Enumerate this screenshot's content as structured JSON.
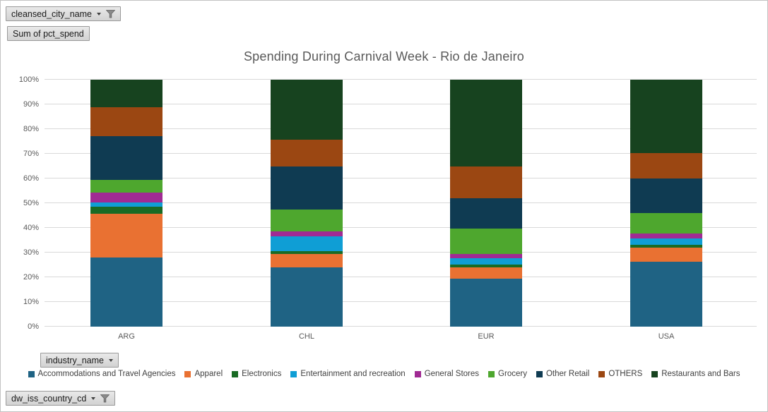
{
  "pivot_buttons": {
    "city_field": {
      "label": "cleansed_city_name",
      "has_dropdown": true,
      "has_filter": true
    },
    "value_field": {
      "label": "Sum of pct_spend",
      "has_dropdown": false,
      "has_filter": false
    },
    "industry_field": {
      "label": "industry_name",
      "has_dropdown": true,
      "has_filter": false
    },
    "country_field": {
      "label": "dw_iss_country_cd",
      "has_dropdown": true,
      "has_filter": true
    }
  },
  "chart_data": {
    "type": "bar",
    "subtype": "100%-stacked-column",
    "title": "Spending During Carnival Week - Rio de Janeiro",
    "categories": [
      "ARG",
      "CHL",
      "EUR",
      "USA"
    ],
    "series": [
      {
        "name": "Accommodations and Travel Agencies",
        "color": "#1F6384",
        "values": [
          28.0,
          24.0,
          19.5,
          26.2
        ]
      },
      {
        "name": "Apparel",
        "color": "#E97132",
        "values": [
          17.6,
          5.4,
          4.6,
          5.9
        ]
      },
      {
        "name": "Electronics",
        "color": "#196B24",
        "values": [
          3.0,
          1.1,
          1.0,
          1.1
        ]
      },
      {
        "name": "Entertainment and recreation",
        "color": "#0F9ED5",
        "values": [
          1.7,
          6.2,
          2.5,
          2.6
        ]
      },
      {
        "name": "General Stores",
        "color": "#A02B93",
        "values": [
          4.0,
          1.8,
          1.7,
          2.0
        ]
      },
      {
        "name": "Grocery",
        "color": "#4EA72E",
        "values": [
          5.0,
          8.8,
          10.5,
          8.3
        ]
      },
      {
        "name": "Other Retail",
        "color": "#0F3B52",
        "values": [
          17.8,
          17.5,
          12.1,
          14.0
        ]
      },
      {
        "name": "OTHERS",
        "color": "#9B4712",
        "values": [
          11.7,
          10.8,
          12.9,
          10.1
        ]
      },
      {
        "name": "Restaurants and Bars",
        "color": "#17431F",
        "values": [
          11.2,
          24.4,
          35.2,
          29.8
        ]
      }
    ],
    "xlabel": "",
    "ylabel": "",
    "ylim": [
      0,
      100
    ],
    "y_ticks": [
      "0%",
      "10%",
      "20%",
      "30%",
      "40%",
      "50%",
      "60%",
      "70%",
      "80%",
      "90%",
      "100%"
    ],
    "grid": true,
    "legend_position": "bottom"
  }
}
